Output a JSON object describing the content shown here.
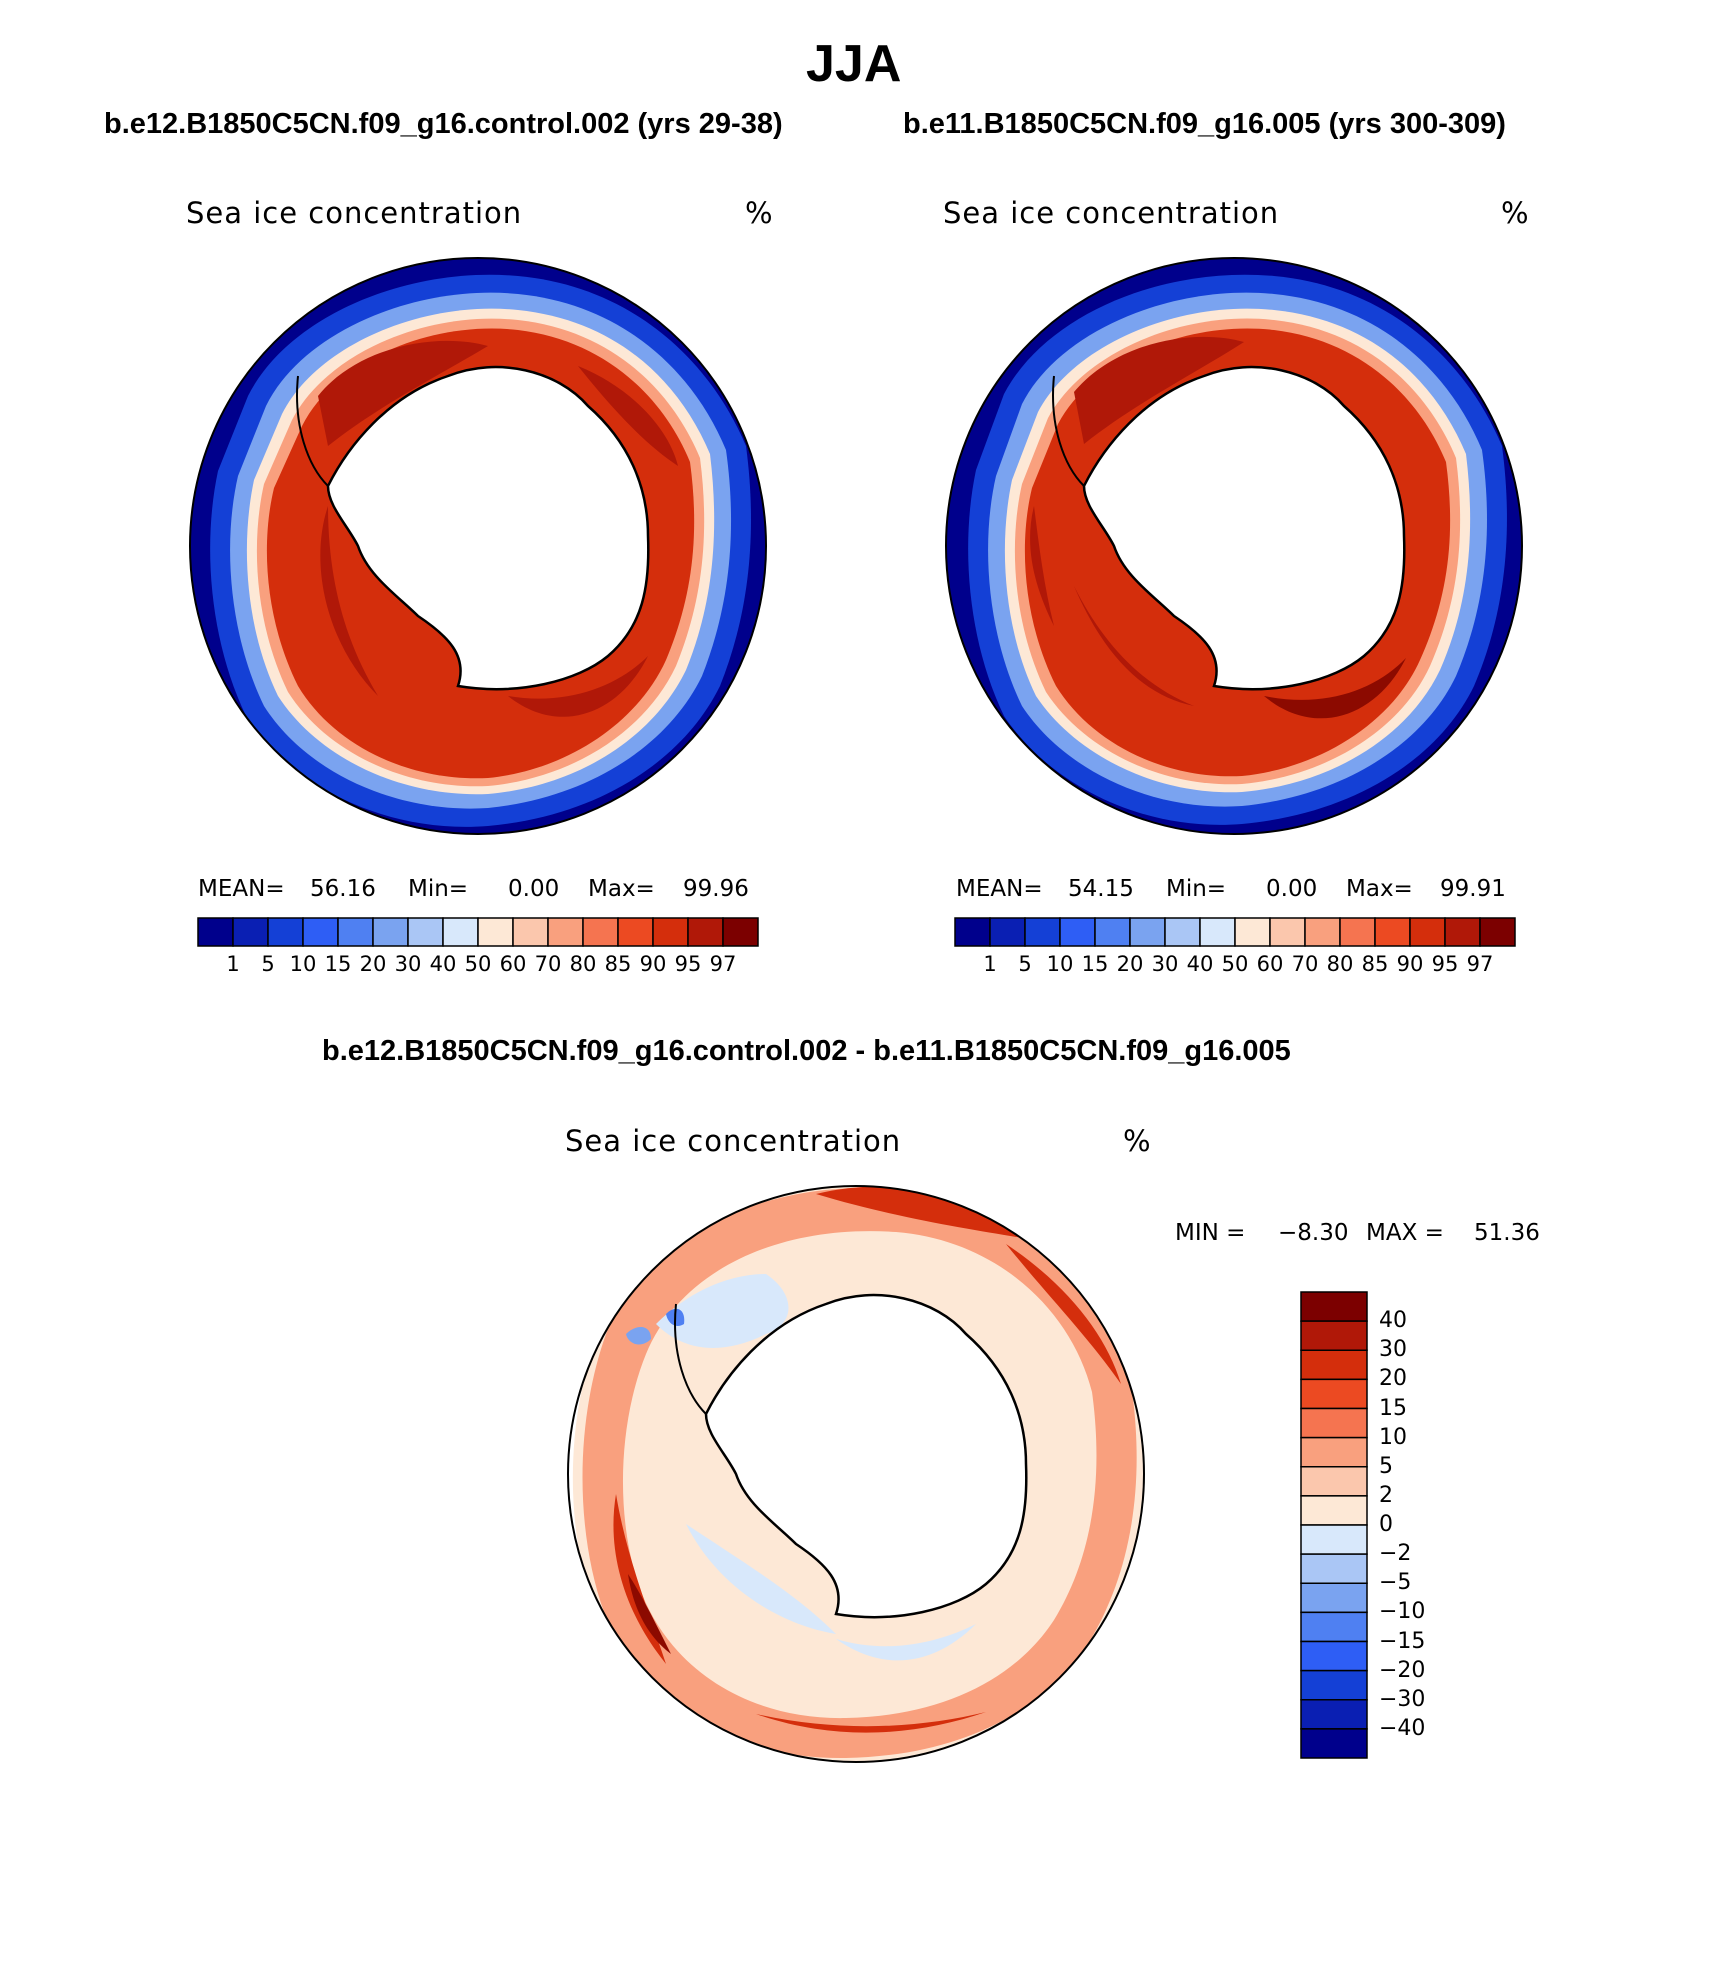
{
  "figure": {
    "title": "JJA",
    "left_run_title": "b.e12.B1850C5CN.f09_g16.control.002 (yrs 29-38)",
    "right_run_title": "b.e11.B1850C5CN.f09_g16.005 (yrs 300-309)",
    "diff_title": "b.e12.B1850C5CN.f09_g16.control.002 - b.e11.B1850C5CN.f09_g16.005"
  },
  "panels": [
    {
      "variable": "Sea ice concentration",
      "units": "%",
      "stats": {
        "mean_label": "MEAN=",
        "mean": "56.16",
        "min_label": "Min=",
        "min": "0.00",
        "max_label": "Max=",
        "max": "99.96"
      }
    },
    {
      "variable": "Sea ice concentration",
      "units": "%",
      "stats": {
        "mean_label": "MEAN=",
        "mean": "54.15",
        "min_label": "Min=",
        "min": "0.00",
        "max_label": "Max=",
        "max": "99.91"
      }
    },
    {
      "variable": "Sea ice concentration",
      "units": "%",
      "stats": {
        "min_label": "MIN =",
        "min": "−8.30",
        "max_label": "MAX =",
        "max": "51.36"
      }
    }
  ],
  "colorbars": {
    "abs": {
      "labels": [
        "1",
        "5",
        "10",
        "15",
        "20",
        "30",
        "40",
        "50",
        "60",
        "70",
        "80",
        "85",
        "90",
        "95",
        "97"
      ],
      "colors": [
        "#00008c",
        "#0a1fb3",
        "#1440d6",
        "#2e5ef5",
        "#4f80f2",
        "#7aa3f0",
        "#aac6f5",
        "#d8e8fb",
        "#fde8d6",
        "#fbc7ad",
        "#f9a07e",
        "#f57450",
        "#ec4a22",
        "#d42e0c",
        "#b01808",
        "#7c0000"
      ]
    },
    "diff": {
      "labels": [
        "40",
        "30",
        "20",
        "15",
        "10",
        "5",
        "2",
        "0",
        "−2",
        "−5",
        "−10",
        "−15",
        "−20",
        "−30",
        "−40"
      ],
      "colors": [
        "#7c0000",
        "#b01808",
        "#d42e0c",
        "#ec4a22",
        "#f57450",
        "#f9a07e",
        "#fbc7ad",
        "#fde8d6",
        "#d8e8fb",
        "#aac6f5",
        "#7aa3f0",
        "#4f80f2",
        "#2e5ef5",
        "#1440d6",
        "#0a1fb3",
        "#00008c"
      ]
    }
  },
  "map_colors": {
    "deep_blue": "#00008c",
    "mid_blue": "#1440d6",
    "light_blue": "#7aa3f0",
    "pale_blue": "#d8e8fb",
    "pale_orange": "#fde8d6",
    "salmon": "#f9a07e",
    "orange": "#f57450",
    "red_orange": "#d42e0c",
    "dark_red": "#b01808",
    "deepest_red": "#8c0a00"
  }
}
